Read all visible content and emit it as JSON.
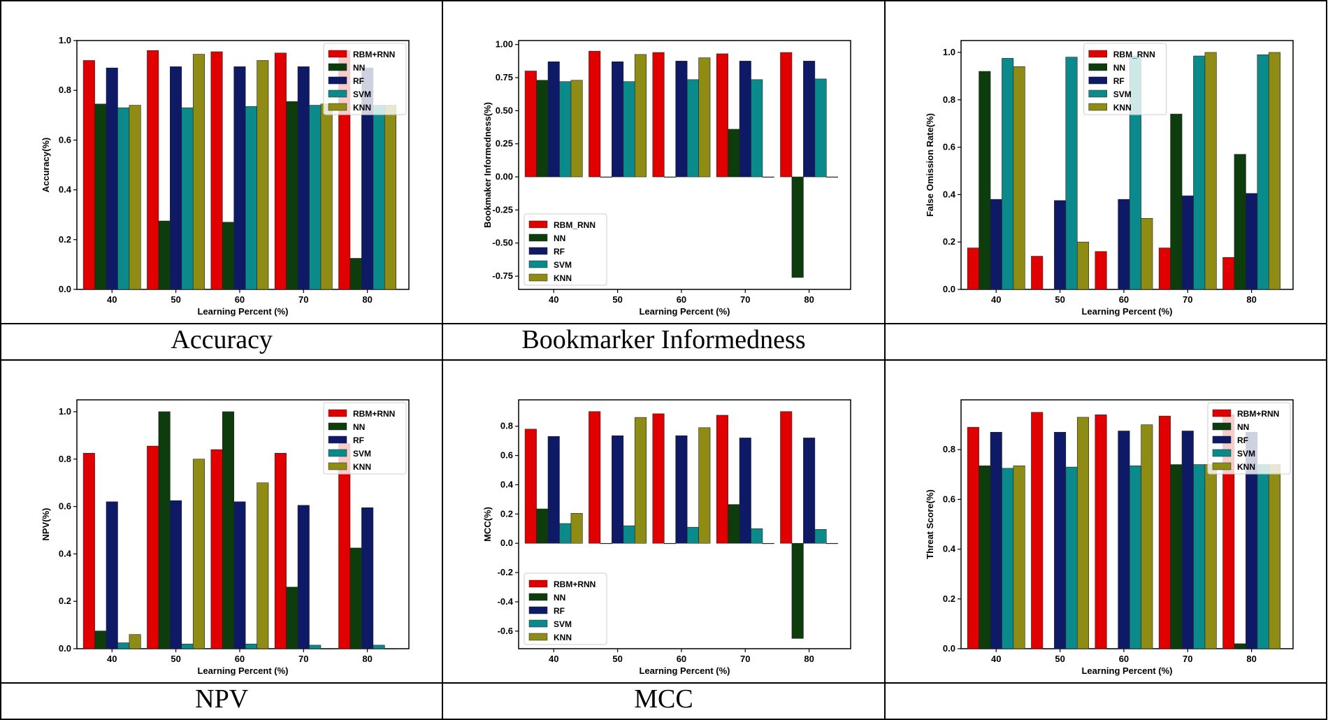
{
  "colors": [
    "#e00000",
    "#0d3d0d",
    "#0e1a66",
    "#0b8a8c",
    "#8e8c14"
  ],
  "captions": [
    "Accuracy",
    "Bookmarker Informedness",
    "",
    "NPV",
    "MCC",
    ""
  ],
  "chart_data": [
    {
      "type": "bar",
      "title": "",
      "xlabel": "Learning Percent (%)",
      "ylabel": "Accuracy(%)",
      "categories": [
        "40",
        "50",
        "60",
        "70",
        "80"
      ],
      "ylim": [
        0,
        1.0
      ],
      "yticks": [
        "0.0",
        "0.2",
        "0.4",
        "0.6",
        "0.8",
        "1.0"
      ],
      "legend_position": "top-right",
      "series": [
        {
          "name": "RBM+RNN",
          "values": [
            0.92,
            0.96,
            0.955,
            0.95,
            0.96
          ]
        },
        {
          "name": "NN",
          "values": [
            0.745,
            0.275,
            0.27,
            0.755,
            0.125
          ]
        },
        {
          "name": "RF",
          "values": [
            0.89,
            0.895,
            0.895,
            0.895,
            0.89
          ]
        },
        {
          "name": "SVM",
          "values": [
            0.73,
            0.73,
            0.735,
            0.74,
            0.74
          ]
        },
        {
          "name": "KNN",
          "values": [
            0.74,
            0.945,
            0.92,
            0.745,
            0.74
          ]
        }
      ]
    },
    {
      "type": "bar",
      "title": "",
      "xlabel": "Learning Percent (%)",
      "ylabel": "Bookmaker Informedness(%)",
      "categories": [
        "40",
        "50",
        "60",
        "70",
        "80"
      ],
      "ylim": [
        -0.85,
        1.03
      ],
      "yticks": [
        "1.00",
        "0.75",
        "0.50",
        "0.25",
        "0.00",
        "-0.25",
        "-0.50",
        "-0.75"
      ],
      "legend_position": "bottom-left",
      "series": [
        {
          "name": "RBM_RNN",
          "values": [
            0.8,
            0.95,
            0.94,
            0.93,
            0.94
          ]
        },
        {
          "name": "NN",
          "values": [
            0.73,
            0.0,
            0.0,
            0.36,
            -0.76
          ]
        },
        {
          "name": "RF",
          "values": [
            0.87,
            0.87,
            0.875,
            0.875,
            0.875
          ]
        },
        {
          "name": "SVM",
          "values": [
            0.72,
            0.72,
            0.735,
            0.735,
            0.74
          ]
        },
        {
          "name": "KNN",
          "values": [
            0.73,
            0.925,
            0.9,
            0.0,
            0.0
          ]
        }
      ]
    },
    {
      "type": "bar",
      "title": "",
      "xlabel": "Learning Percent (%)",
      "ylabel": "False Omission Rate(%)",
      "categories": [
        "40",
        "50",
        "60",
        "70",
        "80"
      ],
      "ylim": [
        0,
        1.05
      ],
      "yticks": [
        "0.0",
        "0.2",
        "0.4",
        "0.6",
        "0.8",
        "1.0"
      ],
      "legend_position": "top-center",
      "series": [
        {
          "name": "RBM_RNN",
          "values": [
            0.175,
            0.14,
            0.16,
            0.175,
            0.135
          ]
        },
        {
          "name": "NN",
          "values": [
            0.92,
            0.0,
            0.0,
            0.74,
            0.57
          ]
        },
        {
          "name": "RF",
          "values": [
            0.38,
            0.375,
            0.38,
            0.395,
            0.405
          ]
        },
        {
          "name": "SVM",
          "values": [
            0.975,
            0.98,
            0.985,
            0.985,
            0.99
          ]
        },
        {
          "name": "KNN",
          "values": [
            0.94,
            0.2,
            0.3,
            1.0,
            1.0
          ]
        }
      ]
    },
    {
      "type": "bar",
      "title": "",
      "xlabel": "Learning Percent (%)",
      "ylabel": "NPV(%)",
      "categories": [
        "40",
        "50",
        "60",
        "70",
        "80"
      ],
      "ylim": [
        0,
        1.05
      ],
      "yticks": [
        "0.0",
        "0.2",
        "0.4",
        "0.6",
        "0.8",
        "1.0"
      ],
      "legend_position": "top-right",
      "series": [
        {
          "name": "RBM+RNN",
          "values": [
            0.825,
            0.855,
            0.84,
            0.825,
            0.865
          ]
        },
        {
          "name": "NN",
          "values": [
            0.075,
            1.0,
            1.0,
            0.26,
            0.425
          ]
        },
        {
          "name": "RF",
          "values": [
            0.62,
            0.625,
            0.62,
            0.605,
            0.595
          ]
        },
        {
          "name": "SVM",
          "values": [
            0.025,
            0.02,
            0.02,
            0.015,
            0.015
          ]
        },
        {
          "name": "KNN",
          "values": [
            0.06,
            0.8,
            0.7,
            0.0,
            0.0
          ]
        }
      ]
    },
    {
      "type": "bar",
      "title": "",
      "xlabel": "Learning Percent (%)",
      "ylabel": "MCC(%)",
      "categories": [
        "40",
        "50",
        "60",
        "70",
        "80"
      ],
      "ylim": [
        -0.72,
        0.98
      ],
      "yticks": [
        "0.8",
        "0.6",
        "0.4",
        "0.2",
        "0.0",
        "-0.2",
        "-0.4",
        "-0.6"
      ],
      "legend_position": "bottom-left",
      "series": [
        {
          "name": "RBM+RNN",
          "values": [
            0.78,
            0.9,
            0.885,
            0.875,
            0.9
          ]
        },
        {
          "name": "NN",
          "values": [
            0.235,
            0.0,
            0.0,
            0.265,
            -0.65
          ]
        },
        {
          "name": "RF",
          "values": [
            0.73,
            0.735,
            0.735,
            0.72,
            0.72
          ]
        },
        {
          "name": "SVM",
          "values": [
            0.135,
            0.12,
            0.11,
            0.1,
            0.095
          ]
        },
        {
          "name": "KNN",
          "values": [
            0.205,
            0.86,
            0.79,
            0.0,
            0.0
          ]
        }
      ]
    },
    {
      "type": "bar",
      "title": "",
      "xlabel": "Learning Percent (%)",
      "ylabel": "Threat Score(%)",
      "categories": [
        "40",
        "50",
        "60",
        "70",
        "80"
      ],
      "ylim": [
        0,
        1.0
      ],
      "yticks": [
        "0.0",
        "0.2",
        "0.4",
        "0.6",
        "0.8"
      ],
      "legend_position": "top-right",
      "series": [
        {
          "name": "RBM+RNN",
          "values": [
            0.89,
            0.95,
            0.94,
            0.935,
            0.94
          ]
        },
        {
          "name": "NN",
          "values": [
            0.735,
            0.0,
            0.0,
            0.74,
            0.02
          ]
        },
        {
          "name": "RF",
          "values": [
            0.87,
            0.87,
            0.875,
            0.875,
            0.87
          ]
        },
        {
          "name": "SVM",
          "values": [
            0.725,
            0.73,
            0.735,
            0.74,
            0.74
          ]
        },
        {
          "name": "KNN",
          "values": [
            0.735,
            0.93,
            0.9,
            0.74,
            0.74
          ]
        }
      ]
    }
  ]
}
